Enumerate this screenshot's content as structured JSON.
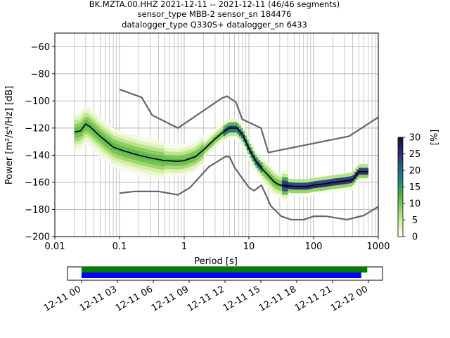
{
  "title": {
    "line1": "BK.MZTA.00.HHZ   2021-12-11 -- 2021-12-11  (46/46 segments)",
    "line2": "sensor_type MBB-2 sensor_sn 184476",
    "line3": "datalogger_type Q330S+ datalogger_sn 6433"
  },
  "chart_data": [
    {
      "type": "heatmap",
      "xlabel": "Period [s]",
      "ylabel": "Power [m²/s⁴/Hz] [dB]",
      "xscale": "log",
      "xlim": [
        0.01,
        1000
      ],
      "ylim": [
        -200,
        -50
      ],
      "x_ticks": [
        0.01,
        0.1,
        1,
        10,
        100,
        1000
      ],
      "x_tick_labels": [
        "0.01",
        "0.1",
        "1",
        "10",
        "100",
        "1000"
      ],
      "y_ticks": [
        -200,
        -180,
        -160,
        -140,
        -120,
        -100,
        -80,
        -60
      ],
      "y_tick_labels": [
        "−200",
        "−180",
        "−160",
        "−140",
        "−120",
        "−100",
        "−80",
        "−60"
      ],
      "grid": true,
      "colorbar": {
        "label": "[%]",
        "range": [
          0,
          30
        ],
        "ticks": [
          0,
          5,
          10,
          15,
          20,
          25,
          30
        ],
        "colors": [
          "#ffffff",
          "#d9efa8",
          "#8fd15a",
          "#4cae4c",
          "#1f8a70",
          "#2a5b8c",
          "#2d2a6e",
          "#1d0b3a"
        ]
      },
      "series": [
        {
          "name": "mode",
          "x": [
            0.02,
            0.025,
            0.03,
            0.035,
            0.05,
            0.08,
            0.12,
            0.2,
            0.3,
            0.5,
            0.8,
            1.0,
            1.5,
            2.0,
            3.0,
            4.0,
            5.0,
            6.5,
            8.0,
            10,
            13,
            16,
            20,
            25,
            30,
            50,
            80,
            100,
            150,
            200,
            300,
            400,
            500,
            600,
            700
          ],
          "y": [
            -123,
            -122,
            -117,
            -119,
            -126,
            -134,
            -137,
            -140,
            -142,
            -144,
            -144.5,
            -144,
            -141,
            -136,
            -128,
            -123,
            -120,
            -120,
            -125,
            -135,
            -145,
            -150,
            -155,
            -160,
            -162,
            -163,
            -163,
            -162,
            -161,
            -160,
            -159,
            -158,
            -152,
            -152,
            -152
          ]
        },
        {
          "name": "nhnm",
          "x": [
            0.1,
            0.22,
            0.32,
            0.8,
            3.8,
            4.6,
            6.3,
            7.9,
            15.4,
            20,
            354.8,
            1000
          ],
          "y": [
            -91.5,
            -97.4,
            -110.5,
            -120,
            -98,
            -96.5,
            -101,
            -113.5,
            -120,
            -138,
            -126,
            -112
          ]
        },
        {
          "name": "nlnm",
          "x": [
            0.1,
            0.17,
            0.4,
            0.8,
            1.24,
            2.4,
            4.3,
            5.0,
            6.0,
            10,
            12,
            15.6,
            21.9,
            31.6,
            45,
            70,
            101,
            154,
            328,
            600,
            1000
          ],
          "y": [
            -168,
            -166.7,
            -166.7,
            -169.2,
            -163.7,
            -148.6,
            -141.1,
            -141.1,
            -149,
            -163.8,
            -166.2,
            -162.1,
            -177.5,
            -185,
            -187.5,
            -187.5,
            -185,
            -185,
            -187.5,
            -184.4,
            -178
          ]
        }
      ]
    },
    {
      "type": "timeline",
      "x_tick_labels": [
        "12-11 00",
        "12-11 03",
        "12-11 06",
        "12-11 09",
        "12-11 12",
        "12-11 15",
        "12-11 18",
        "12-11 21",
        "12-12 00"
      ],
      "series": [
        {
          "color": "#008000",
          "start_hour": 0.0,
          "end_hour": 23.9
        },
        {
          "color": "#0000ff",
          "start_hour": 0.0,
          "end_hour": 23.4
        }
      ]
    }
  ],
  "colors": {
    "model_line": "#666666",
    "mode_line": "#000000",
    "grid": "#b0b0b0"
  }
}
